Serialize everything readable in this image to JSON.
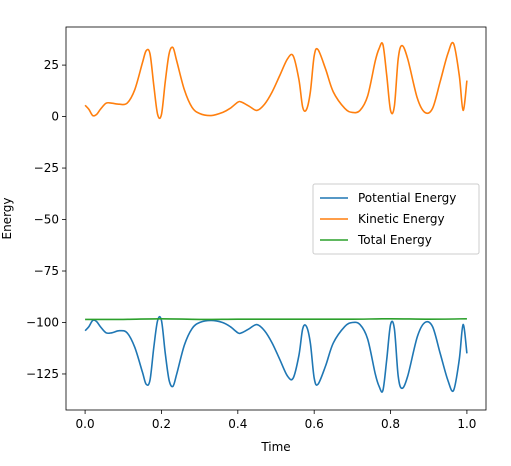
{
  "chart_data": {
    "type": "line",
    "title": "",
    "xlabel": "Time",
    "ylabel": "Energy",
    "xlim": [
      -0.05,
      1.05
    ],
    "ylim": [
      -142.5,
      43.5
    ],
    "xticks": [
      0.0,
      0.2,
      0.4,
      0.6,
      0.8,
      1.0
    ],
    "xtick_labels": [
      "0.0",
      "0.2",
      "0.4",
      "0.6",
      "0.8",
      "1.0"
    ],
    "yticks": [
      25,
      0,
      -25,
      -50,
      -75,
      -100,
      -125
    ],
    "ytick_labels": [
      "25",
      "0",
      "−25",
      "−50",
      "−75",
      "−100",
      "−125"
    ],
    "grid": false,
    "legend_position": "center-right",
    "series": [
      {
        "name": "Potential Energy",
        "color": "#1f77b4",
        "points": [
          [
            0.0,
            -104
          ],
          [
            0.01,
            -102
          ],
          [
            0.02,
            -99
          ],
          [
            0.03,
            -99.5
          ],
          [
            0.04,
            -102
          ],
          [
            0.055,
            -105
          ],
          [
            0.07,
            -105
          ],
          [
            0.09,
            -104
          ],
          [
            0.11,
            -105
          ],
          [
            0.13,
            -112
          ],
          [
            0.15,
            -124
          ],
          [
            0.16,
            -130
          ],
          [
            0.17,
            -128
          ],
          [
            0.18,
            -112
          ],
          [
            0.19,
            -99
          ],
          [
            0.2,
            -99
          ],
          [
            0.21,
            -115
          ],
          [
            0.22,
            -128
          ],
          [
            0.23,
            -131
          ],
          [
            0.24,
            -125
          ],
          [
            0.26,
            -111
          ],
          [
            0.28,
            -103
          ],
          [
            0.3,
            -100
          ],
          [
            0.33,
            -99
          ],
          [
            0.36,
            -100
          ],
          [
            0.38,
            -102
          ],
          [
            0.4,
            -105
          ],
          [
            0.41,
            -105
          ],
          [
            0.43,
            -103
          ],
          [
            0.45,
            -101
          ],
          [
            0.47,
            -104
          ],
          [
            0.49,
            -110
          ],
          [
            0.51,
            -118
          ],
          [
            0.53,
            -126
          ],
          [
            0.545,
            -127
          ],
          [
            0.56,
            -116
          ],
          [
            0.57,
            -103
          ],
          [
            0.58,
            -102
          ],
          [
            0.59,
            -110
          ],
          [
            0.6,
            -127
          ],
          [
            0.61,
            -130
          ],
          [
            0.63,
            -121
          ],
          [
            0.65,
            -110
          ],
          [
            0.68,
            -102
          ],
          [
            0.7,
            -100
          ],
          [
            0.72,
            -101
          ],
          [
            0.74,
            -108
          ],
          [
            0.76,
            -125
          ],
          [
            0.77,
            -131
          ],
          [
            0.78,
            -133
          ],
          [
            0.79,
            -118
          ],
          [
            0.8,
            -101
          ],
          [
            0.81,
            -103
          ],
          [
            0.82,
            -126
          ],
          [
            0.83,
            -132
          ],
          [
            0.845,
            -126
          ],
          [
            0.87,
            -107
          ],
          [
            0.89,
            -100
          ],
          [
            0.91,
            -102
          ],
          [
            0.93,
            -115
          ],
          [
            0.95,
            -128
          ],
          [
            0.965,
            -133
          ],
          [
            0.98,
            -118
          ],
          [
            0.99,
            -101
          ],
          [
            1.0,
            -115
          ]
        ]
      },
      {
        "name": "Kinetic Energy",
        "color": "#ff7f0e",
        "points": [
          [
            0.0,
            5.5
          ],
          [
            0.01,
            3.5
          ],
          [
            0.02,
            0.5
          ],
          [
            0.03,
            1
          ],
          [
            0.04,
            3.5
          ],
          [
            0.055,
            6.5
          ],
          [
            0.07,
            6.5
          ],
          [
            0.09,
            6
          ],
          [
            0.11,
            6.5
          ],
          [
            0.13,
            13
          ],
          [
            0.15,
            26
          ],
          [
            0.16,
            32
          ],
          [
            0.17,
            30.5
          ],
          [
            0.18,
            15
          ],
          [
            0.19,
            1
          ],
          [
            0.2,
            1
          ],
          [
            0.21,
            17
          ],
          [
            0.22,
            30.5
          ],
          [
            0.23,
            33.5
          ],
          [
            0.24,
            27
          ],
          [
            0.26,
            13
          ],
          [
            0.28,
            4.5
          ],
          [
            0.3,
            1.5
          ],
          [
            0.33,
            0.5
          ],
          [
            0.36,
            2
          ],
          [
            0.38,
            4
          ],
          [
            0.4,
            7
          ],
          [
            0.41,
            7
          ],
          [
            0.43,
            5
          ],
          [
            0.45,
            3
          ],
          [
            0.47,
            6
          ],
          [
            0.49,
            12
          ],
          [
            0.51,
            20
          ],
          [
            0.53,
            28
          ],
          [
            0.545,
            29.5
          ],
          [
            0.56,
            18
          ],
          [
            0.57,
            4.5
          ],
          [
            0.58,
            3.5
          ],
          [
            0.59,
            12
          ],
          [
            0.6,
            29.5
          ],
          [
            0.61,
            32.5
          ],
          [
            0.63,
            23
          ],
          [
            0.65,
            12
          ],
          [
            0.68,
            4
          ],
          [
            0.7,
            2
          ],
          [
            0.72,
            3
          ],
          [
            0.74,
            10
          ],
          [
            0.76,
            27
          ],
          [
            0.77,
            33
          ],
          [
            0.78,
            35
          ],
          [
            0.79,
            20
          ],
          [
            0.8,
            3
          ],
          [
            0.81,
            5
          ],
          [
            0.82,
            28
          ],
          [
            0.83,
            34.5
          ],
          [
            0.845,
            28
          ],
          [
            0.87,
            9
          ],
          [
            0.89,
            2
          ],
          [
            0.91,
            4
          ],
          [
            0.93,
            17
          ],
          [
            0.95,
            30.5
          ],
          [
            0.965,
            35.5
          ],
          [
            0.98,
            20
          ],
          [
            0.99,
            3
          ],
          [
            1.0,
            17.5
          ]
        ]
      },
      {
        "name": "Total Energy",
        "color": "#2ca02c",
        "points": [
          [
            0.0,
            -98.5
          ],
          [
            0.1,
            -98.5
          ],
          [
            0.2,
            -98.2
          ],
          [
            0.3,
            -98.5
          ],
          [
            0.4,
            -98.4
          ],
          [
            0.5,
            -98.4
          ],
          [
            0.6,
            -98.4
          ],
          [
            0.7,
            -98.4
          ],
          [
            0.8,
            -98.2
          ],
          [
            0.9,
            -98.4
          ],
          [
            1.0,
            -98.2
          ]
        ]
      }
    ]
  }
}
